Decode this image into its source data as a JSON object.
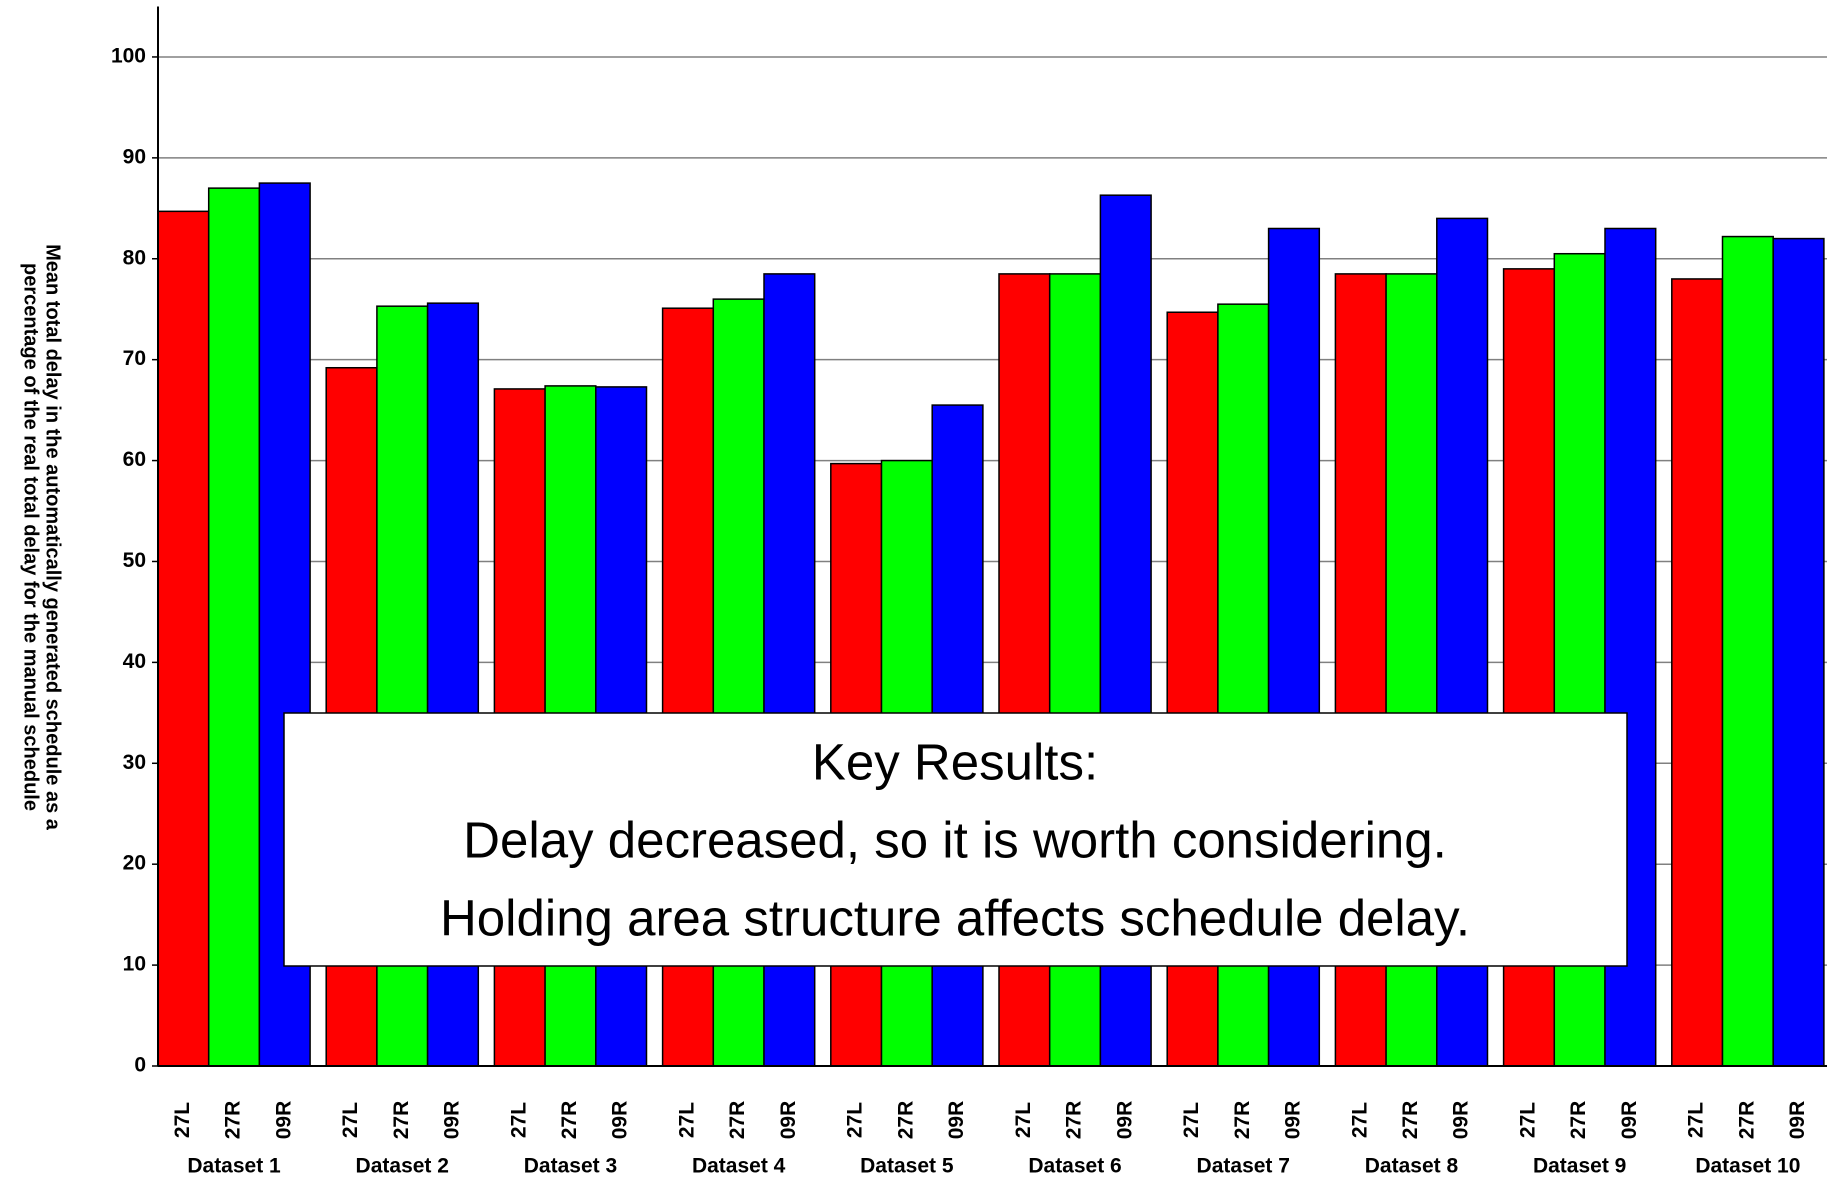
{
  "chart_data": {
    "type": "bar",
    "ylabel": [
      "Mean total delay in the automatically generated schedule as a",
      "percentage of the real total delay for the manual schedule"
    ],
    "categories": [
      "Dataset 1",
      "Dataset 2",
      "Dataset 3",
      "Dataset 4",
      "Dataset 5",
      "Dataset 6",
      "Dataset 7",
      "Dataset 8",
      "Dataset 9",
      "Dataset 10"
    ],
    "series": [
      {
        "name": "27L",
        "color": "#ff0000",
        "values": [
          84.7,
          69.2,
          67.1,
          75.1,
          59.7,
          78.5,
          74.7,
          78.5,
          79,
          78
        ]
      },
      {
        "name": "27R",
        "color": "#00ff00",
        "values": [
          87,
          75.3,
          67.4,
          76,
          60,
          78.5,
          75.5,
          78.5,
          80.5,
          82.2
        ]
      },
      {
        "name": "09R",
        "color": "#0000ff",
        "values": [
          87.5,
          75.6,
          67.3,
          78.5,
          65.5,
          86.3,
          83,
          84,
          83,
          82
        ]
      }
    ],
    "ylim": [
      0,
      105
    ],
    "yticks": [
      0,
      10,
      20,
      30,
      40,
      50,
      60,
      70,
      80,
      90,
      100
    ],
    "grid": true,
    "annotation": [
      "Key Results:",
      "Delay decreased, so it is worth considering.",
      "Holding area structure affects schedule delay."
    ]
  }
}
